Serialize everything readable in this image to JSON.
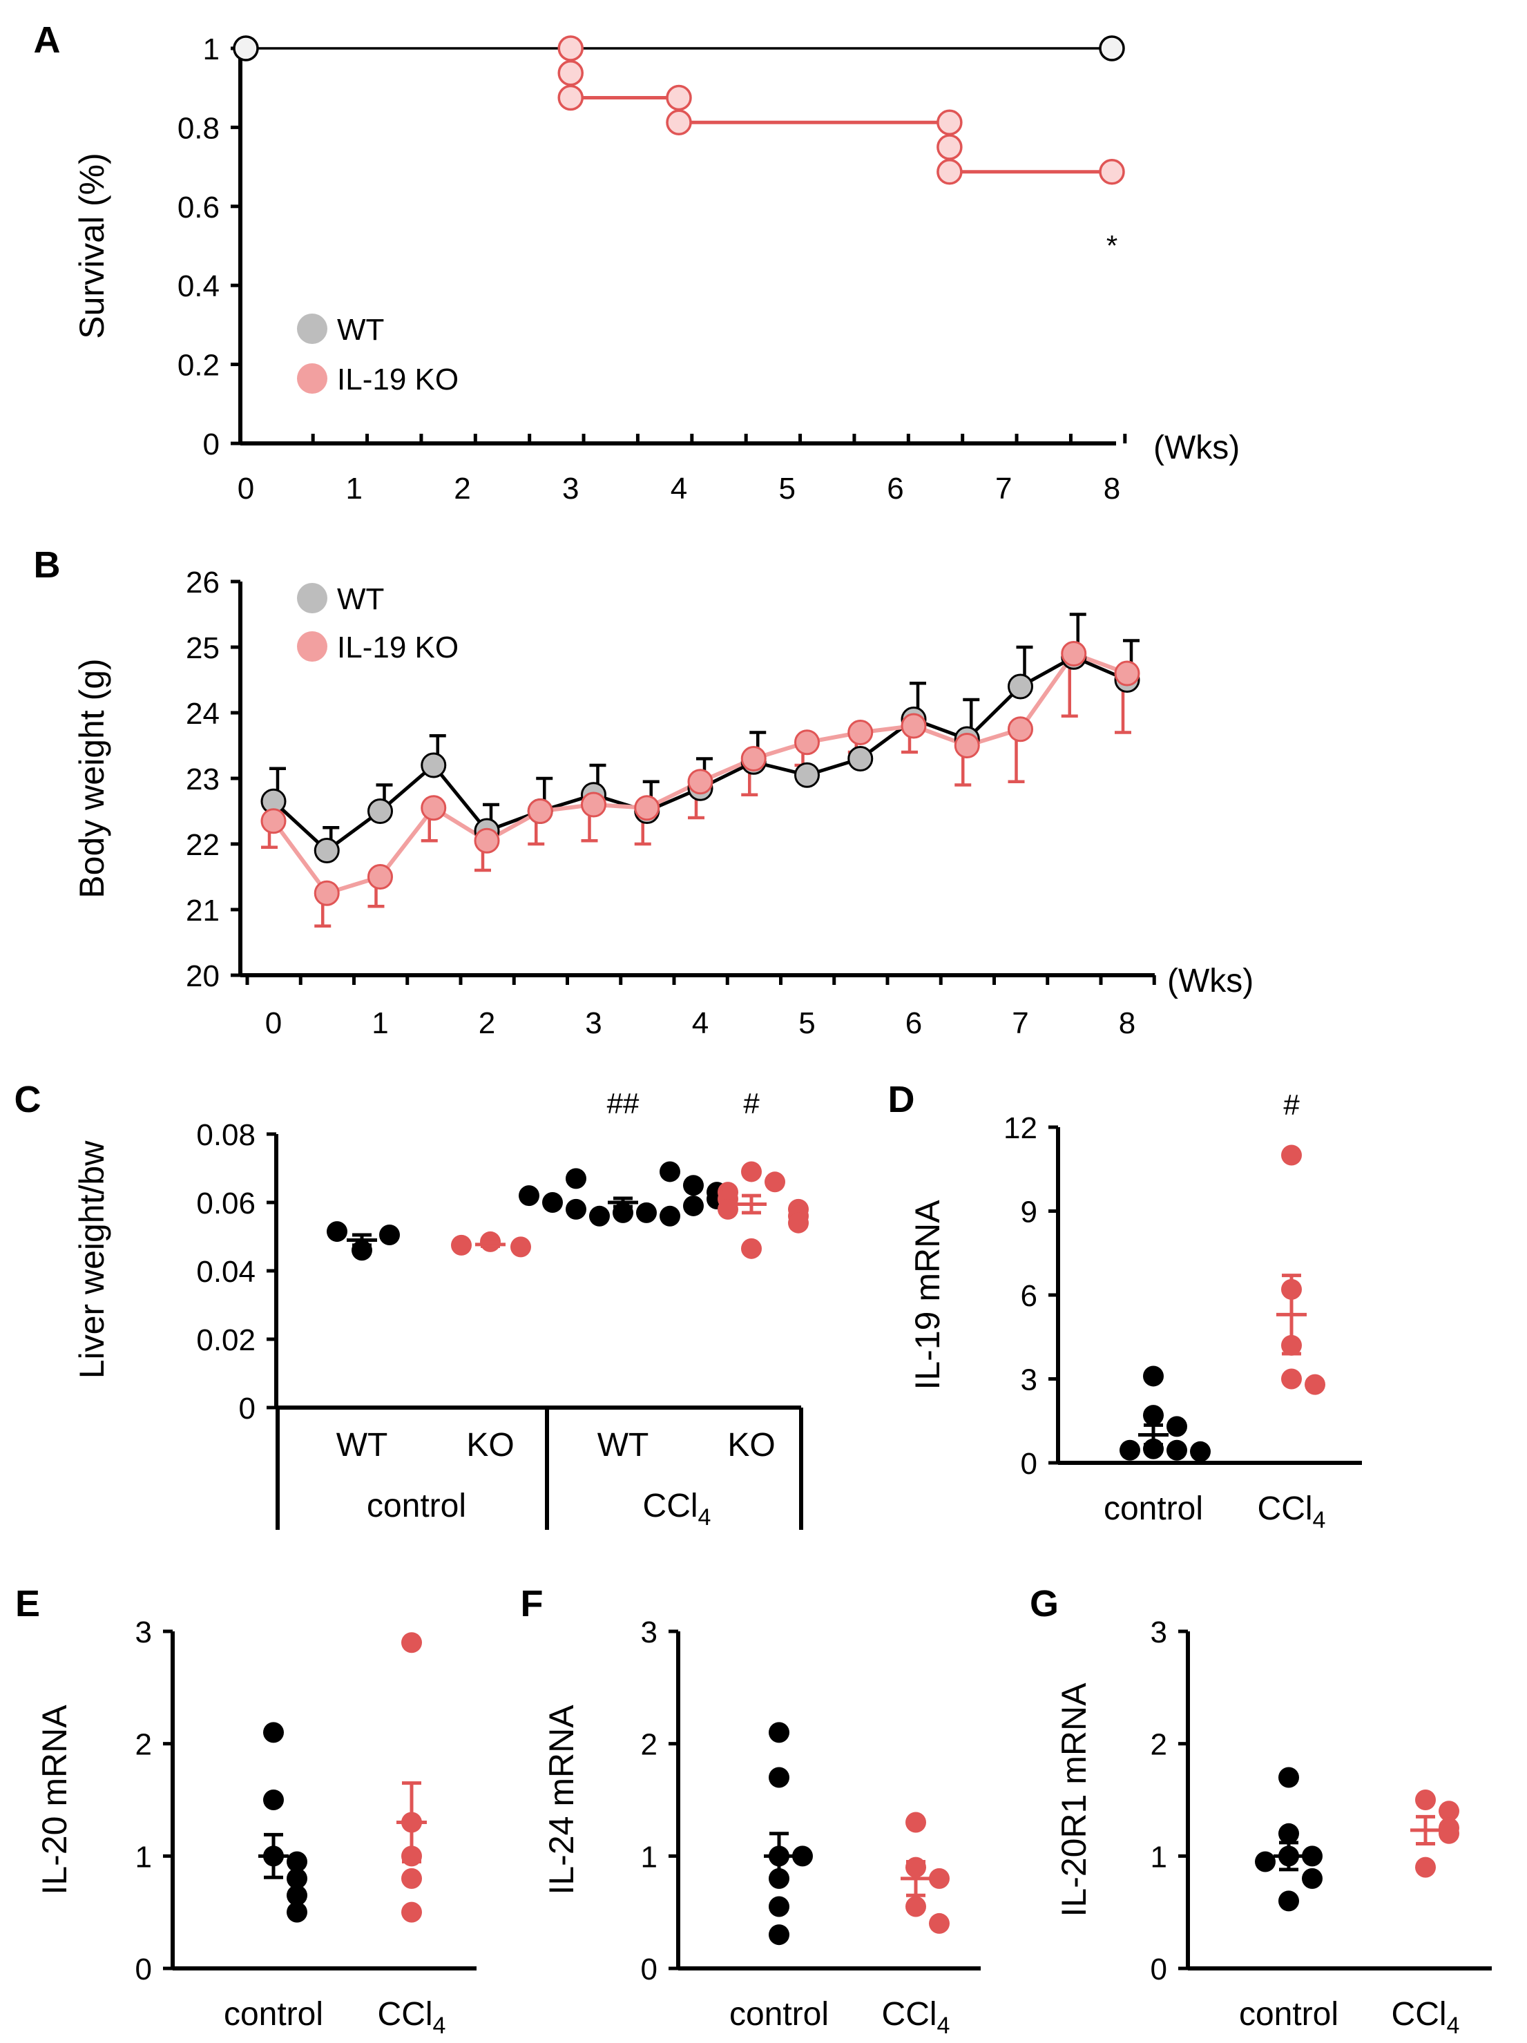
{
  "colors": {
    "wt_fill": "#bdbdbd",
    "ko_fill": "#f2a0a0",
    "ko_light": "#fbd6d6",
    "ko_line": "#e05555",
    "black": "#000000",
    "red_dot": "#e05555"
  },
  "chart_data": [
    {
      "id": "A",
      "panel_label": "A",
      "type": "line",
      "title": "",
      "ylabel": "Survival (%)",
      "xlabel": "(Wks)",
      "yticks": [
        "0",
        "0.2",
        "0.4",
        "0.6",
        "0.8",
        "1"
      ],
      "xticks": [
        "0",
        "1",
        "2",
        "3",
        "4",
        "5",
        "6",
        "7",
        "8"
      ],
      "ylim": [
        0,
        1
      ],
      "xlim": [
        0,
        8
      ],
      "legend": [
        "WT",
        "IL-19 KO"
      ],
      "legend_position": "bottom-left",
      "series": [
        {
          "name": "WT",
          "step_x": [
            0,
            8
          ],
          "step_y": [
            1,
            1
          ],
          "markers": [
            [
              0,
              1
            ],
            [
              8,
              1
            ]
          ]
        },
        {
          "name": "IL-19 KO",
          "step_x": [
            3,
            4,
            6.5,
            8
          ],
          "step_y": [
            0.875,
            0.8125,
            0.6875,
            0.6875
          ],
          "markers": [
            [
              3,
              1
            ],
            [
              3,
              0.9375
            ],
            [
              3,
              0.875
            ],
            [
              4,
              0.875
            ],
            [
              4,
              0.8125
            ],
            [
              6.5,
              0.8125
            ],
            [
              6.5,
              0.75
            ],
            [
              6.5,
              0.6875
            ],
            [
              8,
              0.6875
            ]
          ]
        }
      ],
      "annotation": "*"
    },
    {
      "id": "B",
      "panel_label": "B",
      "type": "line",
      "title": "",
      "ylabel": "Body weight (g)",
      "xlabel": "(Wks)",
      "yticks": [
        "20",
        "21",
        "22",
        "23",
        "24",
        "25",
        "26"
      ],
      "xticks": [
        "0",
        "1",
        "2",
        "3",
        "4",
        "5",
        "6",
        "7",
        "8"
      ],
      "ylim": [
        20,
        26
      ],
      "xlim": [
        0,
        8
      ],
      "legend": [
        "WT",
        "IL-19 KO"
      ],
      "legend_position": "top-left",
      "x": [
        0,
        0.5,
        1,
        1.5,
        2,
        2.5,
        3,
        3.5,
        4,
        4.5,
        5,
        5.5,
        6,
        6.5,
        7,
        7.5,
        8
      ],
      "series": [
        {
          "name": "WT",
          "values": [
            22.65,
            21.9,
            22.5,
            23.2,
            22.2,
            22.5,
            22.75,
            22.5,
            22.85,
            23.25,
            23.05,
            23.3,
            23.9,
            23.6,
            24.4,
            24.85,
            24.5
          ],
          "err": [
            0.5,
            0.35,
            0.4,
            0.45,
            0.4,
            0.5,
            0.45,
            0.45,
            0.45,
            0.45,
            0,
            0,
            0.55,
            0.6,
            0.6,
            0.65,
            0.6
          ]
        },
        {
          "name": "IL-19 KO",
          "values": [
            22.35,
            21.25,
            21.5,
            22.55,
            22.05,
            22.5,
            22.6,
            22.55,
            22.95,
            23.3,
            23.55,
            23.7,
            23.8,
            23.5,
            23.75,
            24.9,
            24.6
          ],
          "err": [
            0.4,
            0.5,
            0.45,
            0.5,
            0.45,
            0.5,
            0.55,
            0.55,
            0.55,
            0.55,
            0.35,
            0.3,
            0.4,
            0.6,
            0.8,
            0.95,
            0.9
          ]
        }
      ]
    },
    {
      "id": "C",
      "panel_label": "C",
      "type": "scatter",
      "title": "",
      "ylabel": "Liver weight/bw",
      "yticks": [
        "0",
        "0.02",
        "0.04",
        "0.06",
        "0.08"
      ],
      "ylim": [
        0,
        0.08
      ],
      "categories": [
        "WT",
        "KO",
        "WT",
        "KO"
      ],
      "groups": [
        "control",
        "CCl4"
      ],
      "series": [
        {
          "name": "WT control",
          "group": 0,
          "values": [
            0.0515,
            0.0505,
            0.046
          ],
          "mean": 0.049,
          "sem": 0.0015
        },
        {
          "name": "KO control",
          "group": 1,
          "values": [
            0.0475,
            0.0485,
            0.047
          ],
          "mean": 0.0477,
          "sem": 0.0005
        },
        {
          "name": "WT CCl4",
          "group": 2,
          "values": [
            0.057,
            0.057,
            0.056,
            0.056,
            0.058,
            0.059,
            0.06,
            0.061,
            0.062,
            0.063,
            0.065,
            0.067,
            0.069
          ],
          "mean": 0.06,
          "sem": 0.0012
        },
        {
          "name": "KO CCl4",
          "group": 3,
          "values": [
            0.069,
            0.066,
            0.063,
            0.061,
            0.058,
            0.058,
            0.056,
            0.054,
            0.0465
          ],
          "mean": 0.0595,
          "sem": 0.0025
        }
      ],
      "annotations": [
        "##",
        "#"
      ]
    },
    {
      "id": "D",
      "panel_label": "D",
      "type": "scatter",
      "title": "",
      "ylabel": "IL-19 mRNA",
      "yticks": [
        "0",
        "3",
        "6",
        "9",
        "12"
      ],
      "ylim": [
        0,
        12
      ],
      "categories": [
        "control",
        "CCl4"
      ],
      "series": [
        {
          "name": "control",
          "values": [
            3.1,
            1.7,
            1.3,
            0.5,
            0.45,
            0.45,
            0.4
          ],
          "mean": 1.0,
          "sem": 0.35
        },
        {
          "name": "CCl4",
          "values": [
            11.0,
            6.2,
            4.2,
            3.0,
            2.8
          ],
          "mean": 5.3,
          "sem": 1.4
        }
      ],
      "annotation": "#"
    },
    {
      "id": "E",
      "panel_label": "E",
      "type": "scatter",
      "title": "",
      "ylabel": "IL-20 mRNA",
      "yticks": [
        "0",
        "1",
        "2",
        "3"
      ],
      "ylim": [
        0,
        3
      ],
      "categories": [
        "control",
        "CCl4"
      ],
      "series": [
        {
          "name": "control",
          "values": [
            2.1,
            1.5,
            1.0,
            0.95,
            0.8,
            0.65,
            0.5
          ],
          "mean": 1.0,
          "sem": 0.19
        },
        {
          "name": "CCl4",
          "values": [
            2.9,
            1.3,
            1.0,
            0.8,
            0.5
          ],
          "mean": 1.3,
          "sem": 0.35
        }
      ]
    },
    {
      "id": "F",
      "panel_label": "F",
      "type": "scatter",
      "title": "",
      "ylabel": "IL-24 mRNA",
      "yticks": [
        "0",
        "1",
        "2",
        "3"
      ],
      "ylim": [
        0,
        3
      ],
      "categories": [
        "control",
        "CCl4"
      ],
      "series": [
        {
          "name": "control",
          "values": [
            2.1,
            1.7,
            1.0,
            1.0,
            0.8,
            0.55,
            0.3
          ],
          "mean": 1.0,
          "sem": 0.2
        },
        {
          "name": "CCl4",
          "values": [
            1.3,
            0.9,
            0.8,
            0.55,
            0.4
          ],
          "mean": 0.8,
          "sem": 0.15
        }
      ]
    },
    {
      "id": "G",
      "panel_label": "G",
      "type": "scatter",
      "title": "",
      "ylabel": "IL-20R1 mRNA",
      "yticks": [
        "0",
        "1",
        "2",
        "3"
      ],
      "ylim": [
        0,
        3
      ],
      "categories": [
        "control",
        "CCl4"
      ],
      "series": [
        {
          "name": "control",
          "values": [
            1.7,
            1.2,
            1.0,
            1.0,
            0.95,
            0.8,
            0.6
          ],
          "mean": 1.0,
          "sem": 0.12
        },
        {
          "name": "CCl4",
          "values": [
            1.5,
            1.4,
            1.25,
            1.2,
            0.9
          ],
          "mean": 1.23,
          "sem": 0.12
        }
      ]
    }
  ]
}
